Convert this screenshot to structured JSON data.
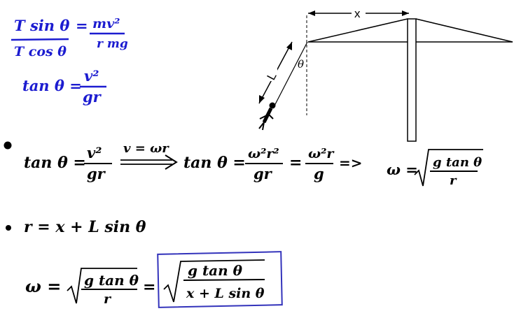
{
  "colors": {
    "blue_ink": "#1c1cd0",
    "black_ink": "#000000",
    "box_stroke": "#3333bb"
  },
  "blue_notes": {
    "line1_lhs": "T sin θ",
    "line1_rhs_num": "mv²",
    "line1_rhs_den": "r mg",
    "line2_lhs": "T cos θ",
    "line3_lhs": "tan θ =",
    "line3_num": "v²",
    "line3_den": "gr"
  },
  "diagram": {
    "x_label": "x",
    "l_label": "L",
    "theta_label": "θ"
  },
  "row1": {
    "lhs": "tan θ =",
    "num1": "v²",
    "den1": "gr",
    "arrow_label": "v = ωr",
    "mid": "tan θ =",
    "num2": "ω²r²",
    "den2": "gr",
    "eq": "=",
    "num3": "ω²r",
    "den3": "g",
    "implies": "=>",
    "omega": "ω =",
    "root_num": "g tan θ",
    "root_den": "r"
  },
  "row2": {
    "bullet_eq": "r = x + L sin θ"
  },
  "row3": {
    "omega": "ω =",
    "root1_num": "g tan θ",
    "root1_den": "r",
    "eq": "=",
    "root2_num": "g tan θ",
    "root2_den": "x + L sin θ"
  }
}
